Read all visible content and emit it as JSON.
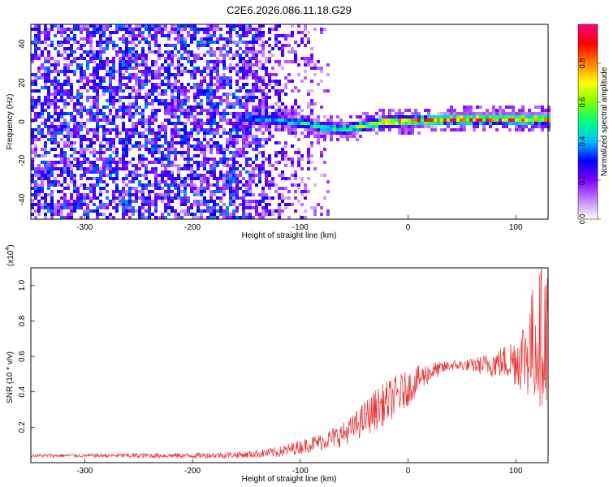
{
  "title": "C2E6.2026.086.11.18.G29",
  "chart_data": [
    {
      "type": "heatmap",
      "xlabel": "Height of straight line (km)",
      "ylabel": "Frequency (Hz)",
      "xlim": [
        -350,
        130
      ],
      "ylim": [
        -50,
        50
      ],
      "x_ticks": [
        -300,
        -200,
        -100,
        0,
        100
      ],
      "y_ticks": [
        -40,
        -20,
        0,
        20,
        40
      ],
      "colorbar": {
        "label": "Normalized spectral amplitude",
        "range": [
          0,
          1
        ],
        "ticks": [
          "0.0",
          "0.2",
          "0.4",
          "0.6",
          "0.8"
        ],
        "tick_values": [
          0.0,
          0.2,
          0.4,
          0.6,
          0.8
        ],
        "colors": [
          "#ffffff",
          "#c080ff",
          "#8000ff",
          "#0000ff",
          "#00c0ff",
          "#00ff80",
          "#80ff00",
          "#ffff00",
          "#ff8000",
          "#ff0000",
          "#ff0080"
        ]
      },
      "noise_region": {
        "x_range": [
          -350,
          -75
        ],
        "amplitude": 0.3
      },
      "signal_ridge": {
        "points": [
          {
            "x": -160,
            "freq": 3,
            "amplitude": 0.4
          },
          {
            "x": -130,
            "freq": 2,
            "amplitude": 0.45
          },
          {
            "x": -100,
            "freq": 0,
            "amplitude": 0.55
          },
          {
            "x": -80,
            "freq": -2,
            "amplitude": 0.6
          },
          {
            "x": -60,
            "freq": -3,
            "amplitude": 0.65
          },
          {
            "x": -40,
            "freq": -1,
            "amplitude": 0.75
          },
          {
            "x": -20,
            "freq": 1,
            "amplitude": 0.9
          },
          {
            "x": 0,
            "freq": 1,
            "amplitude": 0.85
          },
          {
            "x": 40,
            "freq": 2,
            "amplitude": 0.9
          },
          {
            "x": 80,
            "freq": 2,
            "amplitude": 0.95
          },
          {
            "x": 110,
            "freq": 2,
            "amplitude": 0.9
          },
          {
            "x": 130,
            "freq": 2,
            "amplitude": 0.8
          }
        ]
      }
    },
    {
      "type": "line",
      "xlabel": "Height of straight line (km)",
      "ylabel": "SNR (10 * v/v)",
      "y_multiplier": "(x10",
      "y_multiplier_exp": "4",
      "y_multiplier_close": ")",
      "xlim": [
        -350,
        130
      ],
      "ylim": [
        0,
        1.1
      ],
      "x_ticks": [
        -300,
        -200,
        -100,
        0,
        100
      ],
      "y_ticks": [
        0.2,
        0.4,
        0.6,
        0.8,
        1.0
      ],
      "series": [
        {
          "color": "#e83030",
          "x": [
            -350,
            -300,
            -250,
            -200,
            -150,
            -120,
            -100,
            -80,
            -60,
            -50,
            -40,
            -30,
            -20,
            -10,
            0,
            10,
            20,
            30,
            40,
            50,
            60,
            70,
            80,
            90,
            100,
            110,
            120,
            130
          ],
          "y": [
            0.04,
            0.04,
            0.04,
            0.04,
            0.045,
            0.06,
            0.09,
            0.12,
            0.16,
            0.2,
            0.25,
            0.3,
            0.34,
            0.38,
            0.42,
            0.47,
            0.51,
            0.53,
            0.55,
            0.55,
            0.55,
            0.55,
            0.56,
            0.57,
            0.58,
            0.62,
            0.7,
            0.75
          ],
          "spread": [
            0.01,
            0.01,
            0.015,
            0.015,
            0.02,
            0.03,
            0.04,
            0.05,
            0.07,
            0.08,
            0.1,
            0.12,
            0.12,
            0.12,
            0.1,
            0.08,
            0.06,
            0.04,
            0.03,
            0.03,
            0.04,
            0.06,
            0.08,
            0.1,
            0.15,
            0.25,
            0.4,
            0.4
          ]
        }
      ]
    }
  ]
}
